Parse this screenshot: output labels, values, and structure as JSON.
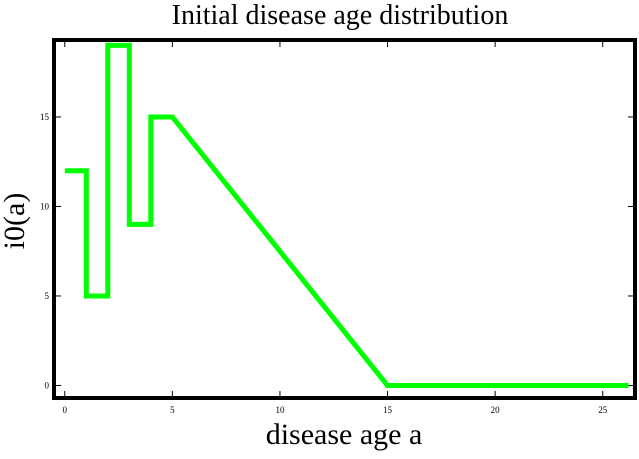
{
  "chart_data": {
    "type": "line",
    "title": "Initial disease age distribution",
    "xlabel": "disease age a",
    "ylabel": "i0(a)",
    "xlim": [
      -0.5,
      26.5
    ],
    "ylim": [
      -0.7,
      19.3
    ],
    "x_ticks": [
      0,
      5,
      10,
      15,
      20,
      25
    ],
    "y_ticks": [
      0,
      5,
      10,
      15
    ],
    "grid": false,
    "series": [
      {
        "color": "#00ff00",
        "x": [
          0,
          1,
          1,
          2,
          2,
          3,
          3,
          4,
          4,
          5,
          15,
          26.2
        ],
        "y": [
          12,
          12,
          5,
          5,
          19,
          19,
          9,
          9,
          15,
          15,
          0,
          0
        ]
      }
    ]
  }
}
